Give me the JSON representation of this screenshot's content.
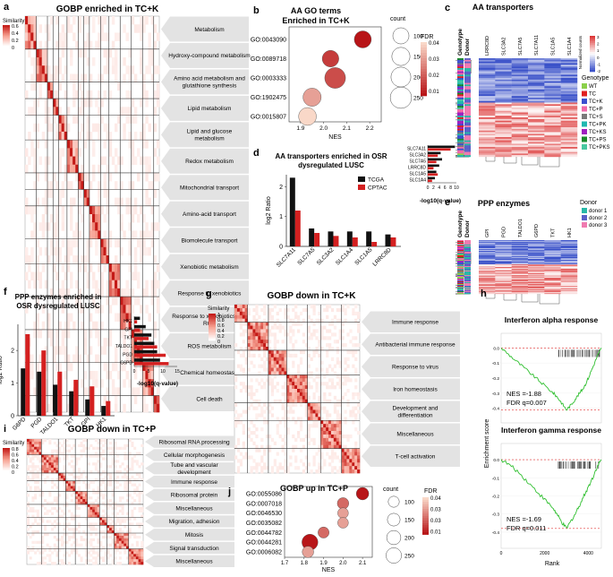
{
  "colors": {
    "heat_low": "#ffffff",
    "heat_mid": "#f7a090",
    "heat_high": "#c41a17",
    "fdr_high": "#f9d8c8",
    "fdr_low": "#b81518",
    "bar_tcga": "#111111",
    "bar_cptac": "#d42020",
    "label_box": "#e3e3e3",
    "green_curve": "#2fbf2f",
    "red_dash": "#e23030",
    "hm_blue": "#3b52c9",
    "hm_red": "#dd3a3a"
  },
  "panels": {
    "a": {
      "letter": "a",
      "title": "GOBP enriched in TC+K",
      "legend": {
        "title": "Similarity",
        "ticks": [
          "0.6",
          "0.4",
          "0.2",
          "0"
        ]
      },
      "labels": [
        "Metabolism",
        "Hydroxy-compound metabolism",
        "Amino acid metabolism and glutathione synthesis",
        "Lipid metabolism",
        "Lipid and glucose metabolism",
        "Redox metabolism",
        "Mitochondrial transport",
        "Amino-acid transport",
        "Biomolecule transport",
        "Xenobiotic metabolism",
        "Response to xenobiotics",
        "Response to xenobiotics and ROS",
        "ROS metabolism",
        "Chemical homeostasis",
        "Cell death"
      ]
    },
    "b": {
      "letter": "b",
      "title": "AA GO terms Enriched in TC+K",
      "size_legend": {
        "title": "count",
        "items": [
          "100",
          "150",
          "200",
          "250"
        ]
      },
      "fdr_legend": {
        "title": "FDR",
        "ticks": [
          "0.04",
          "0.03",
          "0.02",
          "0.01"
        ]
      }
    },
    "c": {
      "letter": "c",
      "title": "AA transporters",
      "col_headers": [
        "Genotype",
        "Donor"
      ],
      "genes": [
        "LRRC8D",
        "SLC3A2",
        "SLC7A5",
        "SLC7A11",
        "SLC1A5",
        "SLC1A4"
      ],
      "scale": {
        "title": "Normalized counts",
        "ticks": [
          "3",
          "2",
          "1",
          "0",
          "-1",
          "-2"
        ]
      },
      "genotype_legend": {
        "title": "Genotype",
        "items": [
          {
            "label": "WT",
            "color": "#8bd04a"
          },
          {
            "label": "TC",
            "color": "#e02020"
          },
          {
            "label": "TC+K",
            "color": "#3a50d0"
          },
          {
            "label": "TC+P",
            "color": "#f06aa8"
          },
          {
            "label": "TC+S",
            "color": "#7a7a7a"
          },
          {
            "label": "TC+PK",
            "color": "#20b8b0"
          },
          {
            "label": "TC+KS",
            "color": "#a020c0"
          },
          {
            "label": "TC+PS",
            "color": "#1a8a2a"
          },
          {
            "label": "TC+PKS",
            "color": "#48c8a0"
          }
        ]
      }
    },
    "d": {
      "letter": "d",
      "title": "AA transporters enriched in OSR dysregulated LUSC",
      "ylabel": "log2 Ratio",
      "legend": [
        "TCGA",
        "CPTAC"
      ],
      "inset_xlabel": "-log10(q-value)",
      "inset_ticks": [
        "0",
        "2",
        "4",
        "6",
        "8",
        "10"
      ]
    },
    "e": {
      "letter": "e",
      "title": "PPP enzymes",
      "col_headers": [
        "Genotype",
        "Donor"
      ],
      "genes": [
        "GPI",
        "PGD",
        "TALDO1",
        "G6PD",
        "TKT",
        "HK1"
      ],
      "donor_legend": {
        "title": "Donor",
        "items": [
          {
            "label": "donor 1",
            "color": "#28b8a8"
          },
          {
            "label": "donor 2",
            "color": "#5a60c8"
          },
          {
            "label": "donor 3",
            "color": "#f07ab0"
          }
        ]
      }
    },
    "f": {
      "letter": "f",
      "title": "PPP enzymes enriched in OSR dysregulated LUSC",
      "ylabel": "log2 Ratio",
      "inset_xlabel": "-log10(q-value)",
      "inset_ticks": [
        "0",
        "5",
        "10",
        "15"
      ]
    },
    "g": {
      "letter": "g",
      "title": "GOBP down in TC+K",
      "legend": {
        "title": "Similarity",
        "ticks": [
          "1",
          "0.8",
          "0.6",
          "0.4",
          "0.2",
          "0"
        ]
      },
      "labels": [
        "Immune response",
        "Antibacterial immune response",
        "Response to virus",
        "Iron homeostasis",
        "Development and differentiation",
        "Miscellaneous",
        "T-cell activation"
      ]
    },
    "h": {
      "letter": "h",
      "ylabel": "Enrichment score",
      "xlabel": "Rank",
      "x_ticks": [
        "0",
        "2000",
        "4000"
      ],
      "plots": [
        {
          "title": "Interferon alpha response",
          "y_ticks": [
            "0.0",
            "-0.1",
            "-0.2",
            "-0.3",
            "-0.4"
          ],
          "nes": "NES =-1.88",
          "fdr": "FDR q=0.007"
        },
        {
          "title": "Interferon gamma response",
          "y_ticks": [
            "0.0",
            "-0.1",
            "-0.2",
            "-0.3",
            "-0.4"
          ],
          "nes": "NES =-1.69",
          "fdr": "FDR q=0.011"
        }
      ]
    },
    "i": {
      "letter": "i",
      "title": "GOBP down in TC+P",
      "legend": {
        "title": "Similarity",
        "ticks": [
          "0.8",
          "0.6",
          "0.4",
          "0.2",
          "0"
        ]
      },
      "labels": [
        "Ribosomal RNA processing",
        "Cellular morphogenesis",
        "Tube and vascular development",
        "Immune response",
        "Ribosomal protein",
        "Miscellaneous",
        "Migration, adhesion",
        "Mitosis",
        "Signal transduction",
        "Miscellaneous"
      ]
    },
    "j": {
      "letter": "j",
      "title": "GOBP up in TC+P",
      "size_legend": {
        "title": "count",
        "items": [
          "100",
          "150",
          "200",
          "250"
        ]
      },
      "fdr_legend": {
        "title": "FDR",
        "ticks": [
          "0.04",
          "0.03",
          "0.03",
          "0.01"
        ]
      }
    }
  },
  "chart_data": [
    {
      "id": "b",
      "type": "scatter",
      "title": "AA GO terms Enriched in TC+K",
      "xlabel": "NES",
      "ylabel": "",
      "xlim": [
        1.85,
        2.25
      ],
      "x_ticks": [
        1.9,
        2.0,
        2.1,
        2.2
      ],
      "categories": [
        "GO:0043090",
        "GO:0089718",
        "GO:0003333",
        "GO:1902475",
        "GO:0015807"
      ],
      "x": [
        2.17,
        2.03,
        2.05,
        1.95,
        1.93
      ],
      "count": [
        120,
        110,
        230,
        150,
        140
      ],
      "fdr": [
        0.005,
        0.012,
        0.015,
        0.03,
        0.04
      ]
    },
    {
      "id": "d",
      "type": "bar",
      "title": "AA transporters enriched in OSR dysregulated LUSC",
      "xlabel": "",
      "ylabel": "log2 Ratio",
      "ylim": [
        0,
        2.4
      ],
      "y_ticks": [
        0,
        1,
        2
      ],
      "categories": [
        "SLC7A11",
        "SLC7A5",
        "SLC3A2",
        "SLC1A4",
        "SLC1A5",
        "LRRC8D"
      ],
      "series": [
        {
          "name": "TCGA",
          "values": [
            2.3,
            0.6,
            0.5,
            0.5,
            0.5,
            0.4
          ]
        },
        {
          "name": "CPTAC",
          "values": [
            1.2,
            0.45,
            0.35,
            0.3,
            0.15,
            0.3
          ]
        }
      ],
      "inset": {
        "type": "bar",
        "xlabel": "-log10(q-value)",
        "xlim": [
          0,
          10
        ],
        "categories": [
          "SLC7A11",
          "SLC3A2",
          "SLC7A5",
          "LRRC8D",
          "SLC1A5",
          "SLC1A4"
        ],
        "series": [
          {
            "name": "TCGA",
            "values": [
              9.5,
              4.5,
              5,
              4,
              3,
              2.5
            ]
          },
          {
            "name": "CPTAC",
            "values": [
              8,
              3.5,
              3,
              2,
              3.5,
              1.5
            ]
          }
        ]
      }
    },
    {
      "id": "f",
      "type": "bar",
      "title": "PPP enzymes enriched in OSR dysregulated LUSC",
      "ylabel": "log2 Ratio",
      "ylim": [
        0,
        2.8
      ],
      "y_ticks": [
        0,
        1,
        2
      ],
      "categories": [
        "G6PD",
        "PGD",
        "TALDO1",
        "TKT",
        "GPI",
        "HK1"
      ],
      "series": [
        {
          "name": "TCGA",
          "values": [
            1.45,
            1.35,
            0.95,
            0.75,
            0.5,
            0.3
          ]
        },
        {
          "name": "CPTAC",
          "values": [
            2.5,
            2.0,
            1.35,
            1.1,
            0.9,
            0.45
          ]
        }
      ],
      "inset": {
        "type": "bar",
        "xlabel": "-log10(q-value)",
        "xlim": [
          0,
          15
        ],
        "categories": [
          "HK1",
          "GPI",
          "TKT",
          "TALDO1",
          "PGD",
          "G6PD"
        ],
        "series": [
          {
            "name": "TCGA",
            "values": [
              2,
              4,
              6,
              7,
              8,
              9
            ]
          },
          {
            "name": "CPTAC",
            "values": [
              1,
              2,
              5,
              8,
              11,
              12
            ]
          }
        ]
      }
    },
    {
      "id": "j",
      "type": "scatter",
      "title": "GOBP up in TC+P",
      "xlabel": "NES",
      "xlim": [
        1.7,
        2.15
      ],
      "x_ticks": [
        1.7,
        1.8,
        1.9,
        2.0,
        2.1
      ],
      "categories": [
        "GO:0055086",
        "GO:0007018",
        "GO:0046530",
        "GO:0035082",
        "GO:0044782",
        "GO:0044281",
        "GO:0006082"
      ],
      "x": [
        2.1,
        2.0,
        2.0,
        2.0,
        1.9,
        1.83,
        1.82
      ],
      "count": [
        140,
        110,
        90,
        90,
        100,
        270,
        110
      ],
      "fdr": [
        0.005,
        0.02,
        0.03,
        0.03,
        0.02,
        0.005,
        0.03
      ]
    },
    {
      "id": "h1",
      "type": "line",
      "title": "Interferon alpha response",
      "xlabel": "Rank",
      "ylabel": "Enrichment score",
      "xlim": [
        0,
        4600
      ],
      "ylim": [
        -0.45,
        0.05
      ],
      "x": [
        0,
        400,
        800,
        1200,
        1600,
        2000,
        2400,
        2600,
        2800,
        3000,
        3200,
        3400,
        3600,
        3800,
        4000,
        4200,
        4400,
        4600
      ],
      "y": [
        0,
        -0.05,
        -0.1,
        -0.15,
        -0.2,
        -0.25,
        -0.3,
        -0.33,
        -0.37,
        -0.41,
        -0.38,
        -0.34,
        -0.3,
        -0.26,
        -0.2,
        -0.13,
        -0.06,
        0
      ]
    },
    {
      "id": "h2",
      "type": "line",
      "title": "Interferon gamma response",
      "xlabel": "Rank",
      "ylabel": "Enrichment score",
      "xlim": [
        0,
        4600
      ],
      "ylim": [
        -0.45,
        0.05
      ],
      "x": [
        0,
        400,
        800,
        1200,
        1600,
        2000,
        2400,
        2600,
        2800,
        3000,
        3200,
        3400,
        3600,
        3800,
        4000,
        4200,
        4400,
        4600
      ],
      "y": [
        0,
        -0.03,
        -0.07,
        -0.12,
        -0.17,
        -0.22,
        -0.27,
        -0.31,
        -0.35,
        -0.38,
        -0.34,
        -0.3,
        -0.25,
        -0.2,
        -0.15,
        -0.1,
        -0.04,
        0
      ]
    },
    {
      "id": "a",
      "type": "heatmap",
      "title": "GOBP enriched in TC+K",
      "cluster_labels": [
        "Metabolism",
        "Hydroxy-compound metabolism",
        "Amino acid metabolism and glutathione synthesis",
        "Lipid metabolism",
        "Lipid and glucose metabolism",
        "Redox metabolism",
        "Mitochondrial transport",
        "Amino-acid transport",
        "Biomolecule transport",
        "Xenobiotic metabolism",
        "Response to xenobiotics",
        "Response to xenobiotics and ROS",
        "ROS metabolism",
        "Chemical homeostasis",
        "Cell death"
      ]
    },
    {
      "id": "g",
      "type": "heatmap",
      "title": "GOBP down in TC+K",
      "cluster_labels": [
        "Immune response",
        "Antibacterial immune response",
        "Response to virus",
        "Iron homeostasis",
        "Development and differentiation",
        "Miscellaneous",
        "T-cell activation"
      ]
    },
    {
      "id": "i",
      "type": "heatmap",
      "title": "GOBP down in TC+P",
      "cluster_labels": [
        "Ribosomal RNA processing",
        "Cellular morphogenesis",
        "Tube and vascular development",
        "Immune response",
        "Ribosomal protein",
        "Miscellaneous",
        "Migration, adhesion",
        "Mitosis",
        "Signal transduction",
        "Miscellaneous"
      ]
    },
    {
      "id": "c",
      "type": "heatmap",
      "title": "AA transporters",
      "columns": [
        "LRRC8D",
        "SLC3A2",
        "SLC7A5",
        "SLC7A11",
        "SLC1A5",
        "SLC1A4"
      ]
    },
    {
      "id": "e",
      "type": "heatmap",
      "title": "PPP enzymes",
      "columns": [
        "GPI",
        "PGD",
        "TALDO1",
        "G6PD",
        "TKT",
        "HK1"
      ]
    }
  ]
}
